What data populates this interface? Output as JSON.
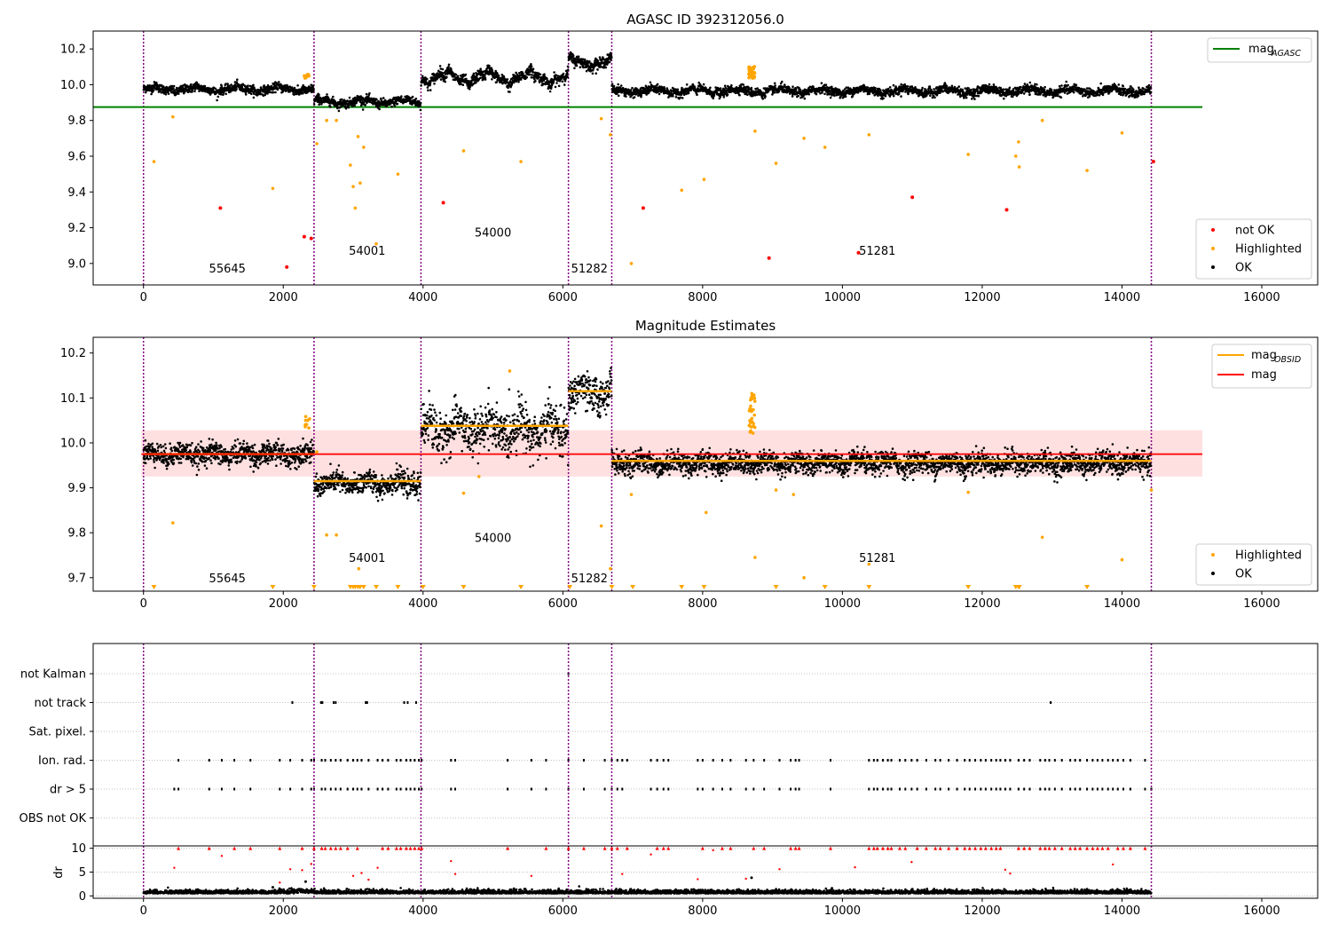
{
  "chart_data": [
    {
      "type": "scatter",
      "title": "AGASC ID 392312056.0",
      "xlim": [
        -720,
        16800
      ],
      "ylim": [
        8.88,
        10.3
      ],
      "xticks": [
        0,
        2000,
        4000,
        6000,
        8000,
        10000,
        12000,
        14000,
        16000
      ],
      "xtick_labels": [
        "0",
        "2000",
        "4000",
        "6000",
        "8000",
        "10000",
        "12000",
        "14000",
        "16000"
      ],
      "yticks": [
        9.0,
        9.2,
        9.4,
        9.6,
        9.8,
        10.0,
        10.2
      ],
      "ytick_labels": [
        "9.0",
        "9.2",
        "9.4",
        "9.6",
        "9.8",
        "10.0",
        "10.2"
      ],
      "obs_boundaries": [
        0,
        2440,
        3970,
        6080,
        6700,
        14420
      ],
      "obs_labels": [
        {
          "text": "55645",
          "x": 1200,
          "y": 8.95
        },
        {
          "text": "54001",
          "x": 3200,
          "y": 9.05
        },
        {
          "text": "54000",
          "x": 5000,
          "y": 9.15
        },
        {
          "text": "51282",
          "x": 6380,
          "y": 8.95
        },
        {
          "text": "51281",
          "x": 10500,
          "y": 9.05
        }
      ],
      "mag_agasc": 9.875,
      "mag_agasc_xrange": [
        -720,
        15150
      ],
      "segments": [
        {
          "x": [
            0,
            2440
          ],
          "mean": 9.975,
          "amp": 0.02,
          "noise": 0.012
        },
        {
          "x": [
            2440,
            3970
          ],
          "mean": 9.905,
          "amp": 0.02,
          "noise": 0.012
        },
        {
          "x": [
            3970,
            6080
          ],
          "mean": 10.04,
          "amp": 0.05,
          "noise": 0.015
        },
        {
          "x": [
            6080,
            6700
          ],
          "mean": 10.125,
          "amp": 0.03,
          "noise": 0.015
        },
        {
          "x": [
            6700,
            14420
          ],
          "mean": 9.965,
          "amp": 0.02,
          "noise": 0.012
        }
      ],
      "highlighted": [
        [
          150,
          9.57
        ],
        [
          420,
          9.82
        ],
        [
          1850,
          9.42
        ],
        [
          2350,
          10.05
        ],
        [
          2480,
          9.67
        ],
        [
          2620,
          9.8
        ],
        [
          2760,
          9.8
        ],
        [
          2960,
          9.55
        ],
        [
          3000,
          9.43
        ],
        [
          3030,
          9.31
        ],
        [
          3070,
          9.71
        ],
        [
          3100,
          9.45
        ],
        [
          3150,
          9.65
        ],
        [
          3330,
          9.11
        ],
        [
          3640,
          9.5
        ],
        [
          4580,
          9.63
        ],
        [
          5400,
          9.57
        ],
        [
          6550,
          9.81
        ],
        [
          6680,
          9.72
        ],
        [
          6980,
          9.0
        ],
        [
          7700,
          9.41
        ],
        [
          8020,
          9.47
        ],
        [
          8700,
          10.07
        ],
        [
          8750,
          9.74
        ],
        [
          9050,
          9.56
        ],
        [
          9450,
          9.7
        ],
        [
          9750,
          9.65
        ],
        [
          10380,
          9.72
        ],
        [
          11800,
          9.61
        ],
        [
          12480,
          9.6
        ],
        [
          12520,
          9.68
        ],
        [
          12530,
          9.54
        ],
        [
          12860,
          9.8
        ],
        [
          13500,
          9.52
        ],
        [
          14000,
          9.73
        ]
      ],
      "not_ok": [
        [
          1100,
          9.31
        ],
        [
          2050,
          8.98
        ],
        [
          2300,
          9.15
        ],
        [
          2400,
          9.14
        ],
        [
          4290,
          9.34
        ],
        [
          7150,
          9.31
        ],
        [
          8950,
          9.03
        ],
        [
          10230,
          9.06
        ],
        [
          11000,
          9.37
        ],
        [
          12350,
          9.3
        ],
        [
          14450,
          9.57
        ]
      ],
      "legend_lines": [
        {
          "label": "mag",
          "sub": "AGASC",
          "color": "#008000"
        }
      ],
      "legend_points": [
        {
          "label": "not OK",
          "color": "#ff0000"
        },
        {
          "label": "Highlighted",
          "color": "#ffa500"
        },
        {
          "label": "OK",
          "color": "#000000"
        }
      ]
    },
    {
      "type": "scatter",
      "title": "Magnitude Estimates",
      "xlim": [
        -720,
        16800
      ],
      "ylim": [
        9.67,
        10.235
      ],
      "xticks": [
        0,
        2000,
        4000,
        6000,
        8000,
        10000,
        12000,
        14000,
        16000
      ],
      "xtick_labels": [
        "0",
        "2000",
        "4000",
        "6000",
        "8000",
        "10000",
        "12000",
        "14000",
        "16000"
      ],
      "yticks": [
        9.7,
        9.8,
        9.9,
        10.0,
        10.1,
        10.2
      ],
      "ytick_labels": [
        "9.7",
        "9.8",
        "9.9",
        "10.0",
        "10.1",
        "10.2"
      ],
      "obs_boundaries": [
        0,
        2440,
        3970,
        6080,
        6700,
        14420
      ],
      "obs_labels": [
        {
          "text": "55645",
          "x": 1200,
          "y": 9.69
        },
        {
          "text": "54001",
          "x": 3200,
          "y": 9.735
        },
        {
          "text": "54000",
          "x": 5000,
          "y": 9.78
        },
        {
          "text": "51282",
          "x": 6380,
          "y": 9.69
        },
        {
          "text": "51281",
          "x": 10500,
          "y": 9.735
        }
      ],
      "mag": 9.975,
      "mag_band": [
        9.925,
        10.028
      ],
      "mag_xrange": [
        -30,
        15150
      ],
      "mag_obsid": [
        {
          "x": [
            0,
            2440
          ],
          "y": 9.975
        },
        {
          "x": [
            2440,
            3970
          ],
          "y": 9.915
        },
        {
          "x": [
            3970,
            6080
          ],
          "y": 10.038
        },
        {
          "x": [
            6080,
            6700
          ],
          "y": 10.115
        },
        {
          "x": [
            6700,
            14420
          ],
          "y": 9.96
        }
      ],
      "segments": [
        {
          "x": [
            0,
            2440
          ],
          "mean": 9.975,
          "amp": 0.01,
          "noise": 0.012
        },
        {
          "x": [
            2440,
            3970
          ],
          "mean": 9.91,
          "amp": 0.012,
          "noise": 0.012
        },
        {
          "x": [
            3970,
            6080
          ],
          "mean": 10.03,
          "amp": 0.03,
          "noise": 0.025
        },
        {
          "x": [
            6080,
            6700
          ],
          "mean": 10.11,
          "amp": 0.02,
          "noise": 0.02
        },
        {
          "x": [
            6700,
            14420
          ],
          "mean": 9.955,
          "amp": 0.01,
          "noise": 0.012
        }
      ],
      "highlighted": [
        [
          420,
          9.822
        ],
        [
          2350,
          10.05
        ],
        [
          2480,
          9.98
        ],
        [
          2620,
          9.795
        ],
        [
          2760,
          9.795
        ],
        [
          3080,
          9.72
        ],
        [
          4580,
          9.888
        ],
        [
          4800,
          9.925
        ],
        [
          5240,
          10.16
        ],
        [
          6550,
          9.815
        ],
        [
          6680,
          9.72
        ],
        [
          6980,
          9.885
        ],
        [
          8050,
          9.845
        ],
        [
          8700,
          10.07
        ],
        [
          8750,
          9.745
        ],
        [
          9050,
          9.895
        ],
        [
          9300,
          9.885
        ],
        [
          9450,
          9.7
        ],
        [
          10380,
          9.73
        ],
        [
          11800,
          9.89
        ],
        [
          12860,
          9.79
        ],
        [
          14000,
          9.74
        ],
        [
          14420,
          9.895
        ]
      ],
      "triangles_x": [
        150,
        1850,
        2440,
        2960,
        3000,
        3030,
        3070,
        3100,
        3150,
        3330,
        3640,
        4000,
        4580,
        5400,
        6100,
        6700,
        7000,
        7700,
        8020,
        9050,
        9750,
        10380,
        11800,
        12480,
        12520,
        12530,
        13500
      ],
      "legend_lines": [
        {
          "label": "mag",
          "sub": "OBSID",
          "color": "#ffa500"
        },
        {
          "label": "mag",
          "sub": "",
          "color": "#ff0000"
        }
      ],
      "legend_points": [
        {
          "label": "Highlighted",
          "color": "#ffa500"
        },
        {
          "label": "OK",
          "color": "#000000"
        }
      ]
    },
    {
      "type": "scatter",
      "title": "",
      "xlim": [
        -720,
        16800
      ],
      "flag_rows": [
        "not Kalman",
        "not track",
        "Sat. pixel.",
        "Ion. rad.",
        "dr > 5",
        "OBS not OK"
      ],
      "obs_boundaries": [
        0,
        2440,
        3970,
        6080,
        6700,
        14420
      ],
      "flag_x": {
        "not Kalman": [
          6080
        ],
        "not track": [
          2130,
          2540,
          2560,
          2720,
          2750,
          3180,
          3200,
          3730,
          3780,
          3900,
          12980
        ],
        "Sat. pixel.": [],
        "Ion. rad.": [
          500,
          940,
          1120,
          1300,
          1530,
          1950,
          2100,
          2270,
          2400,
          2440,
          2550,
          2600,
          2680,
          2750,
          2820,
          2920,
          3000,
          3060,
          3120,
          3220,
          3350,
          3420,
          3500,
          3620,
          3680,
          3760,
          3820,
          3880,
          3940,
          3980,
          4400,
          4460,
          5210,
          5550,
          5760,
          6080,
          6300,
          6600,
          6700,
          6780,
          6850,
          6920,
          7260,
          7350,
          7440,
          7510,
          7930,
          8000,
          8150,
          8280,
          8400,
          8620,
          8730,
          8880,
          9100,
          9260,
          9330,
          9380,
          9830,
          10380,
          10450,
          10500,
          10580,
          10650,
          10700,
          10820,
          10900,
          10990,
          11070,
          11200,
          11330,
          11400,
          11520,
          11640,
          11750,
          11820,
          11900,
          11980,
          12050,
          12130,
          12200,
          12260,
          12330,
          12400,
          12520,
          12600,
          12680,
          12830,
          12900,
          12960,
          13040,
          13140,
          13260,
          13330,
          13400,
          13500,
          13580,
          13650,
          13720,
          13800,
          13870,
          13940,
          14020,
          14120,
          14330
        ],
        "dr > 5": [
          440,
          500,
          940,
          1120,
          1300,
          1530,
          1950,
          2100,
          2270,
          2400,
          2440,
          2550,
          2600,
          2680,
          2750,
          2820,
          2920,
          3000,
          3060,
          3120,
          3220,
          3350,
          3420,
          3500,
          3620,
          3680,
          3760,
          3820,
          3880,
          3940,
          3980,
          4400,
          4460,
          5210,
          5550,
          5760,
          6080,
          6300,
          6600,
          6700,
          6780,
          6850,
          7260,
          7350,
          7440,
          7510,
          7930,
          8000,
          8150,
          8280,
          8400,
          8620,
          8730,
          8880,
          9100,
          9260,
          9330,
          9380,
          9830,
          10380,
          10450,
          10500,
          10580,
          10650,
          10700,
          10820,
          10900,
          10990,
          11070,
          11200,
          11330,
          11400,
          11520,
          11640,
          11750,
          11820,
          11900,
          11980,
          12050,
          12130,
          12200,
          12260,
          12330,
          12400,
          12520,
          12600,
          12680,
          12830,
          12900,
          12960,
          13040,
          13140,
          13260,
          13330,
          13400,
          13500,
          13580,
          13650,
          13720,
          13800,
          13870,
          13940,
          14020,
          14120,
          14330,
          14420
        ],
        "OBS not OK": []
      }
    },
    {
      "type": "scatter",
      "title": "",
      "ylabel": "dr",
      "xlim": [
        -720,
        16800
      ],
      "ylim": [
        -0.5,
        10.5
      ],
      "xticks": [
        0,
        2000,
        4000,
        6000,
        8000,
        10000,
        12000,
        14000,
        16000
      ],
      "xtick_labels": [
        "0",
        "2000",
        "4000",
        "6000",
        "8000",
        "10000",
        "12000",
        "14000",
        "16000"
      ],
      "yticks": [
        0,
        5,
        10
      ],
      "ytick_labels": [
        "0",
        "5",
        "10"
      ],
      "obs_boundaries": [
        0,
        2440,
        3970,
        6080,
        6700,
        14420
      ],
      "dr_mean": 0.5,
      "red_points": [
        [
          440,
          5.9
        ],
        [
          1120,
          8.4
        ],
        [
          1950,
          2.8
        ],
        [
          2100,
          5.6
        ],
        [
          2270,
          5.4
        ],
        [
          2400,
          6.7
        ],
        [
          3000,
          4.2
        ],
        [
          3120,
          4.8
        ],
        [
          3220,
          3.4
        ],
        [
          3350,
          5.9
        ],
        [
          4400,
          7.3
        ],
        [
          4460,
          4.6
        ],
        [
          5550,
          4.2
        ],
        [
          6850,
          4.6
        ],
        [
          7260,
          8.7
        ],
        [
          7930,
          3.5
        ],
        [
          8150,
          9.6
        ],
        [
          8620,
          3.6
        ],
        [
          9100,
          5.6
        ],
        [
          10180,
          6.0
        ],
        [
          10990,
          7.1
        ],
        [
          12330,
          5.5
        ],
        [
          12400,
          4.7
        ],
        [
          13870,
          6.6
        ]
      ],
      "red_top_x": [
        500,
        940,
        1300,
        1530,
        1950,
        2270,
        2440,
        2550,
        2600,
        2680,
        2750,
        2820,
        2920,
        3060,
        3420,
        3500,
        3620,
        3680,
        3760,
        3820,
        3880,
        3940,
        3980,
        5210,
        5760,
        6080,
        6300,
        6600,
        6700,
        6780,
        6920,
        7350,
        7440,
        7510,
        8000,
        8280,
        8400,
        8730,
        8880,
        9260,
        9330,
        9380,
        9830,
        10380,
        10450,
        10500,
        10580,
        10650,
        10700,
        10820,
        10900,
        11070,
        11200,
        11330,
        11400,
        11520,
        11640,
        11750,
        11820,
        11900,
        11980,
        12050,
        12130,
        12200,
        12260,
        12520,
        12600,
        12680,
        12830,
        12900,
        12960,
        13040,
        13140,
        13260,
        13330,
        13400,
        13500,
        13580,
        13650,
        13720,
        13800,
        13940,
        14020,
        14120,
        14330
      ]
    }
  ]
}
